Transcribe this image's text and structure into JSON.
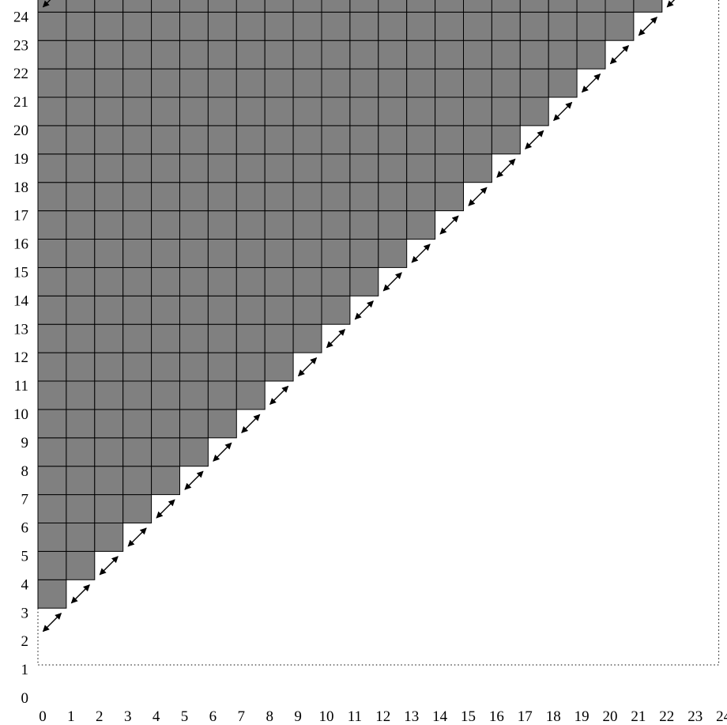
{
  "chart_data": {
    "type": "staircase-grid",
    "xlim": [
      0,
      24
    ],
    "ylim": [
      0,
      24
    ],
    "x_ticks": [
      "0",
      "1",
      "2",
      "3",
      "4",
      "5",
      "6",
      "7",
      "8",
      "9",
      "10",
      "11",
      "12",
      "13",
      "14",
      "15",
      "16",
      "17",
      "18",
      "19",
      "20",
      "21",
      "22",
      "23",
      "24"
    ],
    "y_ticks": [
      "0",
      "1",
      "2",
      "3",
      "4",
      "5",
      "6",
      "7",
      "8",
      "9",
      "10",
      "11",
      "12",
      "13",
      "14",
      "15",
      "16",
      "17",
      "18",
      "19",
      "20",
      "21",
      "22",
      "23",
      "24"
    ],
    "cell_rule": "filled unit cell at column i, row j when j >= i + 2",
    "diagonal_arrows": [
      {
        "x1": 0,
        "y1": 1,
        "x2": 1,
        "y2": 2
      },
      {
        "x1": 1,
        "y1": 2,
        "x2": 2,
        "y2": 3
      },
      {
        "x1": 2,
        "y1": 3,
        "x2": 3,
        "y2": 4
      },
      {
        "x1": 3,
        "y1": 4,
        "x2": 4,
        "y2": 5
      },
      {
        "x1": 4,
        "y1": 5,
        "x2": 5,
        "y2": 6
      },
      {
        "x1": 5,
        "y1": 6,
        "x2": 6,
        "y2": 7
      },
      {
        "x1": 6,
        "y1": 7,
        "x2": 7,
        "y2": 8
      },
      {
        "x1": 7,
        "y1": 8,
        "x2": 8,
        "y2": 9
      },
      {
        "x1": 8,
        "y1": 9,
        "x2": 9,
        "y2": 10
      },
      {
        "x1": 9,
        "y1": 10,
        "x2": 10,
        "y2": 11
      },
      {
        "x1": 10,
        "y1": 11,
        "x2": 11,
        "y2": 12
      },
      {
        "x1": 11,
        "y1": 12,
        "x2": 12,
        "y2": 13
      },
      {
        "x1": 12,
        "y1": 13,
        "x2": 13,
        "y2": 14
      },
      {
        "x1": 13,
        "y1": 14,
        "x2": 14,
        "y2": 15
      },
      {
        "x1": 14,
        "y1": 15,
        "x2": 15,
        "y2": 16
      },
      {
        "x1": 15,
        "y1": 16,
        "x2": 16,
        "y2": 17
      },
      {
        "x1": 16,
        "y1": 17,
        "x2": 17,
        "y2": 18
      },
      {
        "x1": 17,
        "y1": 18,
        "x2": 18,
        "y2": 19
      },
      {
        "x1": 18,
        "y1": 19,
        "x2": 19,
        "y2": 20
      },
      {
        "x1": 19,
        "y1": 20,
        "x2": 20,
        "y2": 21
      },
      {
        "x1": 20,
        "y1": 21,
        "x2": 21,
        "y2": 22
      },
      {
        "x1": 21,
        "y1": 22,
        "x2": 22,
        "y2": 23
      },
      {
        "x1": 22,
        "y1": 23,
        "x2": 23,
        "y2": 24
      },
      {
        "x1": 0,
        "y1": 23,
        "x2": 1,
        "y2": 24
      }
    ],
    "grid": false,
    "border": "dotted"
  },
  "colors": {
    "cell_fill": "#808080",
    "cell_stroke": "#000000",
    "arrow": "#000000",
    "frame": "#000000",
    "background": "#ffffff"
  }
}
